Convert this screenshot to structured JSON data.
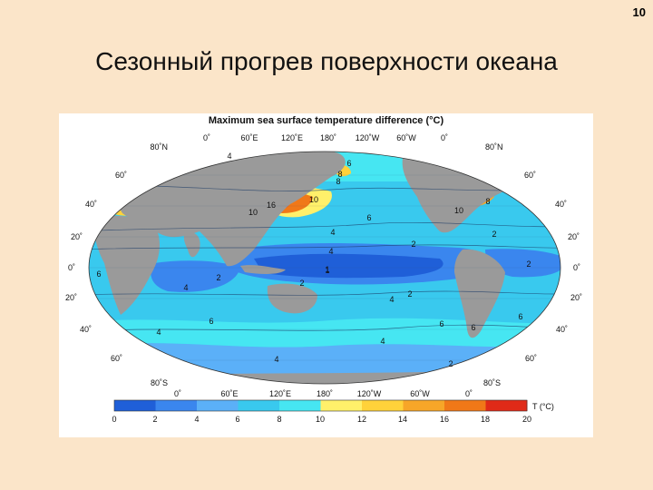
{
  "slide": {
    "page_number": "10",
    "title": "Сезонный прогрев поверхности океана"
  },
  "figure": {
    "title": "Maximum sea surface temperature difference (°C)",
    "lon_labels_top": [
      "0˚",
      "60˚E",
      "120˚E",
      "180˚",
      "120˚W",
      "60˚W",
      "0˚"
    ],
    "lon_labels_bottom": [
      "0˚",
      "60˚E",
      "120˚E",
      "180˚",
      "120˚W",
      "60˚W",
      "0˚"
    ],
    "lat_labels_left": [
      "80˚N",
      "60˚",
      "40˚",
      "20˚",
      "0˚",
      "20˚",
      "40˚",
      "60˚",
      "80˚S"
    ],
    "lat_labels_right": [
      "80˚N",
      "60˚",
      "40˚",
      "20˚",
      "0˚",
      "20˚",
      "40˚",
      "60˚",
      "80˚S"
    ],
    "contour_labels": [
      "4",
      "6",
      "8",
      "10",
      "16",
      "10",
      "6",
      "8",
      "10",
      "4",
      "2",
      "2",
      "1",
      "2",
      "2",
      "4",
      "4",
      "6",
      "6",
      "4",
      "4",
      "6",
      "2",
      "4",
      "4",
      "6",
      "2",
      "8",
      "1",
      "2",
      "6"
    ],
    "colorbar": {
      "ticks": [
        "0",
        "2",
        "4",
        "6",
        "8",
        "10",
        "12",
        "14",
        "16",
        "18",
        "20"
      ],
      "unit": "T (°C)",
      "colors": [
        "#1f5fd8",
        "#3a86ee",
        "#5bb0f8",
        "#39c9ee",
        "#46e6f2",
        "#fff06a",
        "#ffd23a",
        "#f7a628",
        "#f07818",
        "#e02a18"
      ]
    }
  }
}
